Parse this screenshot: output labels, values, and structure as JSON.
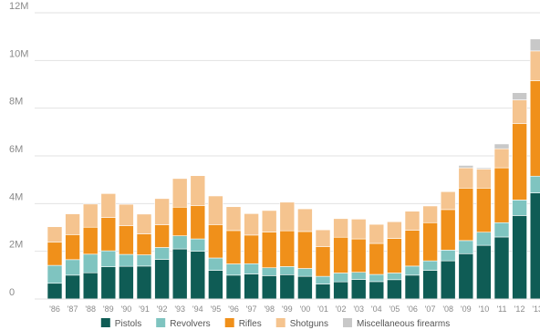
{
  "chart_data": {
    "type": "bar",
    "stacked": true,
    "title": "",
    "xlabel": "",
    "ylabel": "",
    "ylim": [
      0,
      12000000
    ],
    "yticks": [
      0,
      2000000,
      4000000,
      6000000,
      8000000,
      10000000,
      12000000
    ],
    "ytick_labels": [
      "0",
      "2M",
      "4M",
      "6M",
      "8M",
      "10M",
      "12M"
    ],
    "grid": true,
    "legend_position": "bottom",
    "categories": [
      "'86",
      "'87",
      "'88",
      "'89",
      "'90",
      "'91",
      "'92",
      "'93",
      "'94",
      "'95",
      "'96",
      "'97",
      "'98",
      "'99",
      "'00",
      "'01",
      "'02",
      "'03",
      "'04",
      "'05",
      "'06",
      "'07",
      "'08",
      "'09",
      "'10",
      "'11",
      "'12",
      "'13"
    ],
    "series": [
      {
        "name": "Pistols",
        "color": "#0f5c55",
        "values": [
          660000,
          1000000,
          1100000,
          1350000,
          1370000,
          1380000,
          1660000,
          2100000,
          2000000,
          1200000,
          1000000,
          1050000,
          980000,
          1020000,
          950000,
          630000,
          720000,
          820000,
          730000,
          810000,
          1000000,
          1200000,
          1600000,
          1900000,
          2250000,
          2600000,
          3500000,
          4450000
        ]
      },
      {
        "name": "Revolvers",
        "color": "#7fc4c0",
        "values": [
          750000,
          650000,
          780000,
          670000,
          500000,
          470000,
          500000,
          550000,
          520000,
          520000,
          470000,
          430000,
          330000,
          340000,
          330000,
          320000,
          370000,
          300000,
          300000,
          280000,
          380000,
          400000,
          450000,
          550000,
          550000,
          600000,
          650000,
          700000
        ]
      },
      {
        "name": "Rifles",
        "color": "#f0901a",
        "values": [
          970000,
          1050000,
          1130000,
          1400000,
          1200000,
          880000,
          950000,
          1200000,
          1400000,
          1400000,
          1400000,
          1200000,
          1500000,
          1500000,
          1550000,
          1250000,
          1500000,
          1400000,
          1300000,
          1450000,
          1500000,
          1600000,
          1700000,
          2200000,
          1850000,
          2300000,
          3200000,
          4000000
        ]
      },
      {
        "name": "Shotguns",
        "color": "#f5c48f",
        "values": [
          650000,
          870000,
          970000,
          1000000,
          900000,
          830000,
          1100000,
          1200000,
          1250000,
          1200000,
          1000000,
          900000,
          900000,
          1200000,
          950000,
          700000,
          780000,
          830000,
          800000,
          700000,
          800000,
          700000,
          750000,
          850000,
          800000,
          800000,
          1000000,
          1250000
        ]
      },
      {
        "name": "Miscellaneous firearms",
        "color": "#c8c8c8",
        "values": [
          0,
          0,
          0,
          0,
          0,
          0,
          0,
          0,
          0,
          0,
          0,
          0,
          0,
          0,
          0,
          0,
          0,
          0,
          0,
          0,
          0,
          0,
          0,
          100000,
          50000,
          200000,
          300000,
          500000
        ]
      }
    ]
  }
}
